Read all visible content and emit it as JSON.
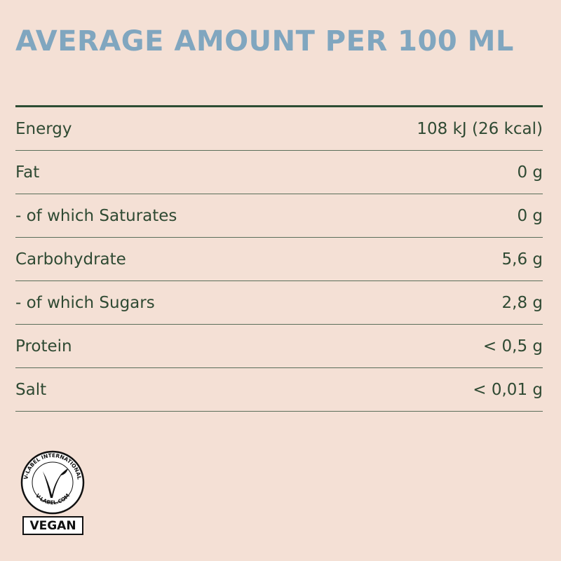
{
  "header": {
    "title": "AVERAGE AMOUNT PER 100 ML"
  },
  "table": {
    "rows": [
      [
        "Energy",
        "108 kJ (26 kcal)"
      ],
      [
        "Fat",
        "0 g"
      ],
      [
        "- of which Saturates",
        "0 g"
      ],
      [
        "Carbohydrate",
        "5,6 g"
      ],
      [
        "- of which Sugars",
        "2,8 g"
      ],
      [
        "Protein",
        "< 0,5 g"
      ],
      [
        "Salt",
        "< 0,01 g"
      ]
    ]
  },
  "logo": {
    "top_text": "V-LABEL INTERNATIONAL",
    "bottom_text": "V-LABEL.COM",
    "badge": "VEGAN"
  }
}
